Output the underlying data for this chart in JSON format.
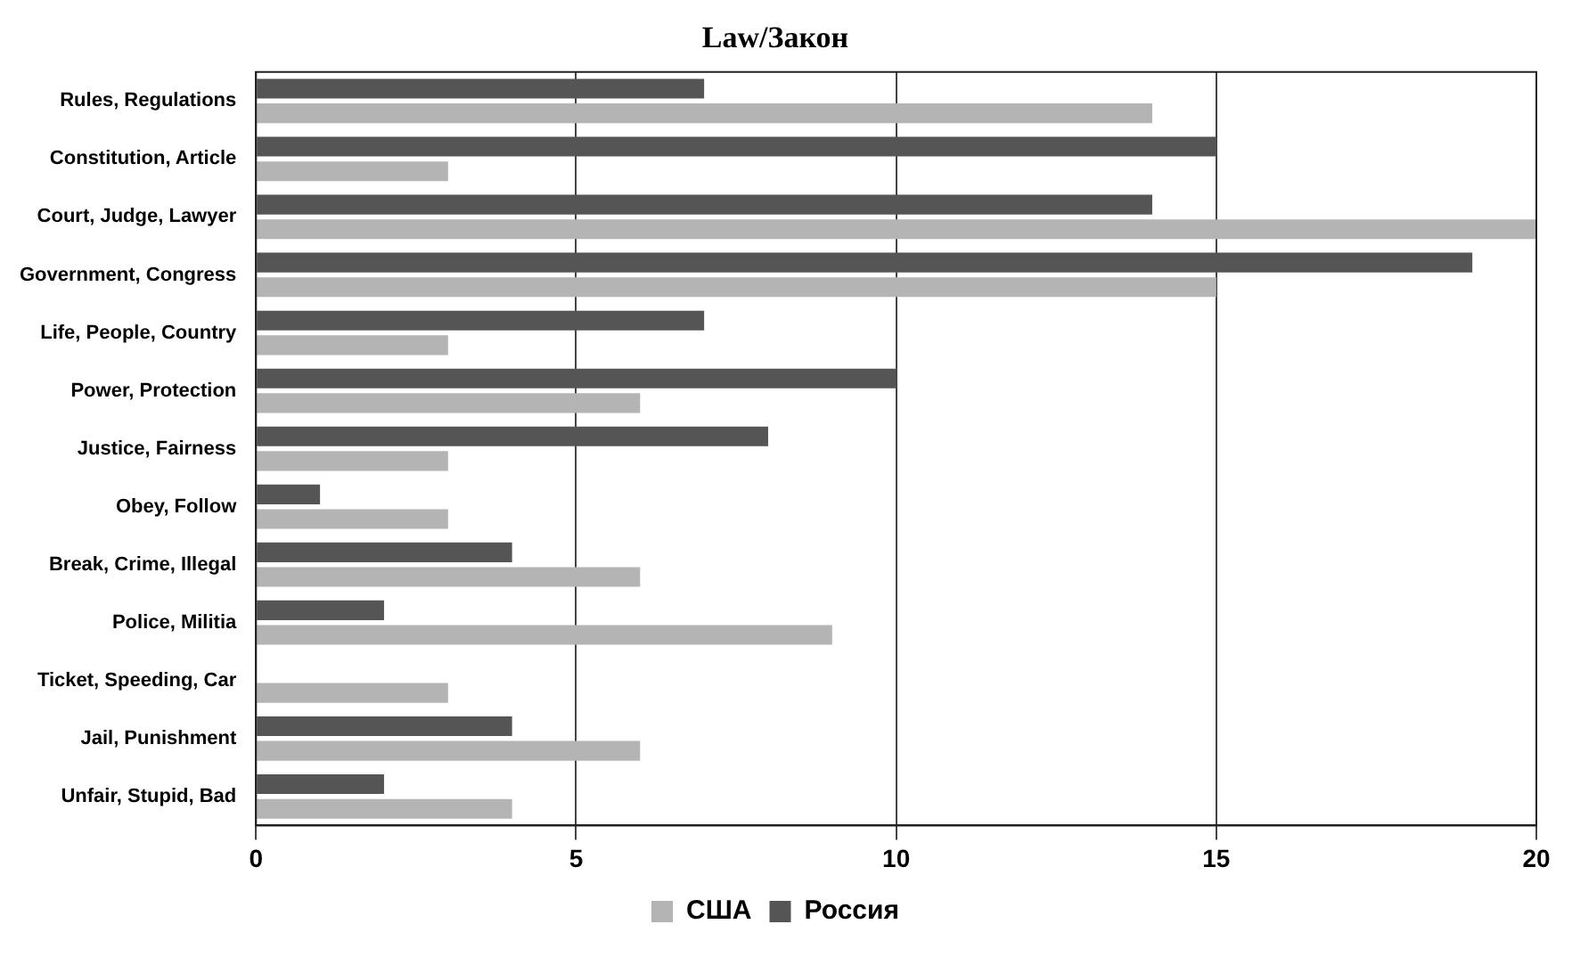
{
  "chart_data": {
    "type": "bar",
    "orientation": "horizontal",
    "title": "Law/Закон",
    "categories": [
      "Rules, Regulations",
      "Constitution, Article",
      "Court, Judge, Lawyer",
      "Government, Congress",
      "Life, People, Country",
      "Power, Protection",
      "Justice, Fairness",
      "Obey, Follow",
      "Break, Crime, Illegal",
      "Police, Militia",
      "Ticket, Speeding, Car",
      "Jail, Punishment",
      "Unfair, Stupid, Bad"
    ],
    "series": [
      {
        "name": "США",
        "color": "#b4b4b4",
        "values": [
          14,
          3,
          20,
          15,
          3,
          6,
          3,
          3,
          6,
          9,
          3,
          6,
          4
        ]
      },
      {
        "name": "Россия",
        "color": "#555555",
        "values": [
          7,
          15,
          14,
          19,
          7,
          10,
          8,
          1,
          4,
          2,
          0,
          4,
          2
        ]
      }
    ],
    "xlim": [
      0,
      20
    ],
    "xticks": [
      0,
      5,
      10,
      15,
      20
    ],
    "grid": "x",
    "legend": "bottom"
  }
}
